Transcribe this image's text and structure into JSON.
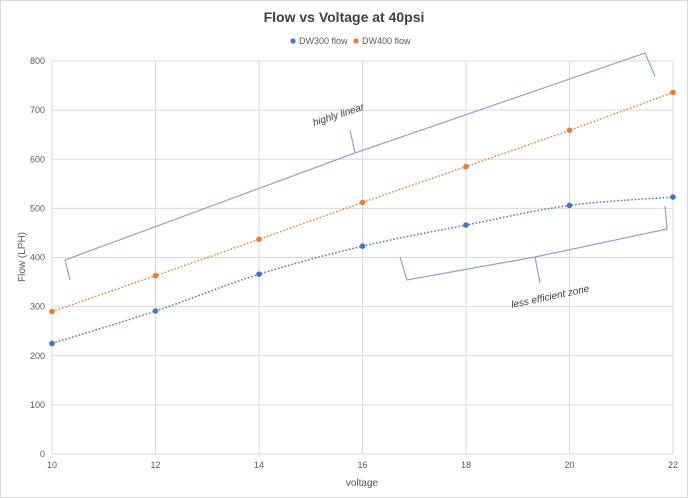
{
  "chart_data": {
    "type": "scatter",
    "title": "Flow vs Voltage at 40psi",
    "xlabel": "voltage",
    "ylabel": "Flow (LPH)",
    "xlim": [
      10,
      22
    ],
    "ylim": [
      0,
      800
    ],
    "xticks": [
      "10",
      "12",
      "14",
      "16",
      "18",
      "20",
      "22"
    ],
    "yticks": [
      "0",
      "100",
      "200",
      "300",
      "400",
      "500",
      "600",
      "700",
      "800"
    ],
    "grid": true,
    "legend_position": "top",
    "series": [
      {
        "name": "DW300 flow",
        "color": "#4472c4",
        "trendline": "dotted",
        "x": [
          10,
          12,
          14,
          16,
          18,
          20,
          22
        ],
        "y": [
          225,
          291,
          366,
          423,
          466,
          506,
          523
        ]
      },
      {
        "name": "DW400 flow",
        "color": "#ed7d31",
        "trendline": "dotted",
        "x": [
          10,
          12,
          14,
          16,
          18,
          20,
          22
        ],
        "y": [
          290,
          363,
          437,
          512,
          585,
          659,
          736
        ]
      }
    ],
    "annotations": [
      {
        "text": "highly linear",
        "style": "brace"
      },
      {
        "text": "less efficient zone",
        "style": "brace"
      }
    ]
  }
}
